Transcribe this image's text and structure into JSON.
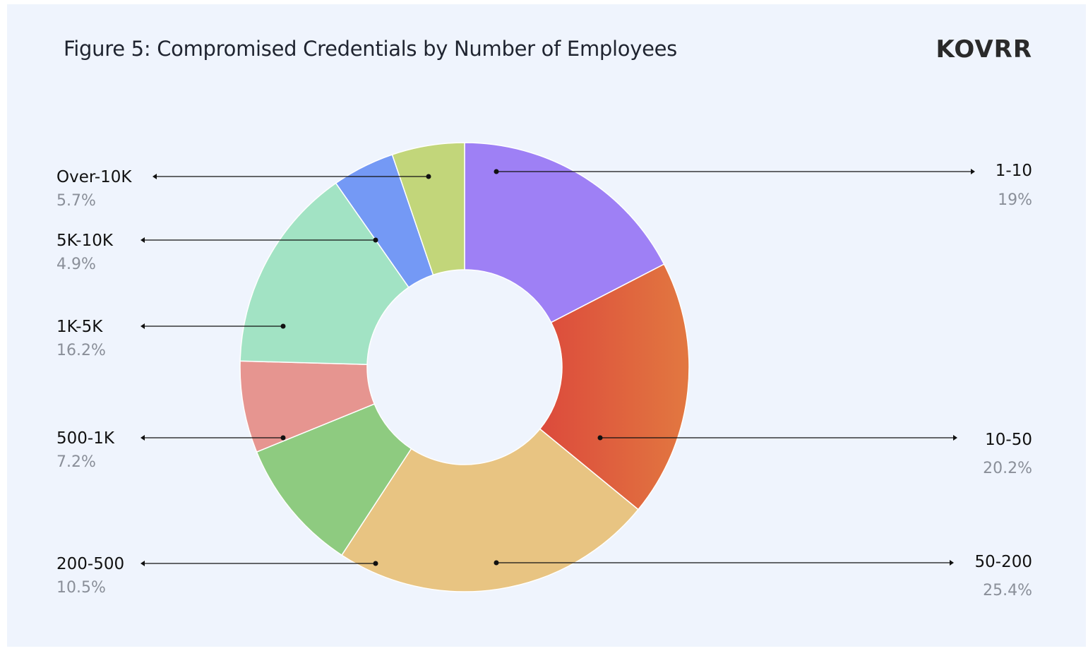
{
  "header": {
    "title": "Figure 5: Compromised Credentials by Number of Employees",
    "logo_text": "KOVRR"
  },
  "chart_data": {
    "type": "pie",
    "variant": "donut",
    "title": "Figure 5: Compromised Credentials by Number of Employees",
    "unit": "%",
    "slices": [
      {
        "label": "1-10",
        "value": 19,
        "value_label": "19%",
        "color": "#9e80f5"
      },
      {
        "label": "10-50",
        "value": 20.2,
        "value_label": "20.2%",
        "color": "#e0553f"
      },
      {
        "label": "50-200",
        "value": 25.4,
        "value_label": "25.4%",
        "color": "#e8c482"
      },
      {
        "label": "200-500",
        "value": 10.5,
        "value_label": "10.5%",
        "color": "#8ecb80"
      },
      {
        "label": "500-1K",
        "value": 7.2,
        "value_label": "7.2%",
        "color": "#e69590"
      },
      {
        "label": "1K-5K",
        "value": 16.2,
        "value_label": "16.2%",
        "color": "#a2e3c4"
      },
      {
        "label": "5K-10K",
        "value": 4.9,
        "value_label": "4.9%",
        "color": "#7499f5"
      },
      {
        "label": "Over-10K",
        "value": 5.7,
        "value_label": "5.7%",
        "color": "#c2d67a"
      }
    ],
    "legend": "callout labels (right side for 1-10, 10-50, 50-200; left side for others)"
  }
}
